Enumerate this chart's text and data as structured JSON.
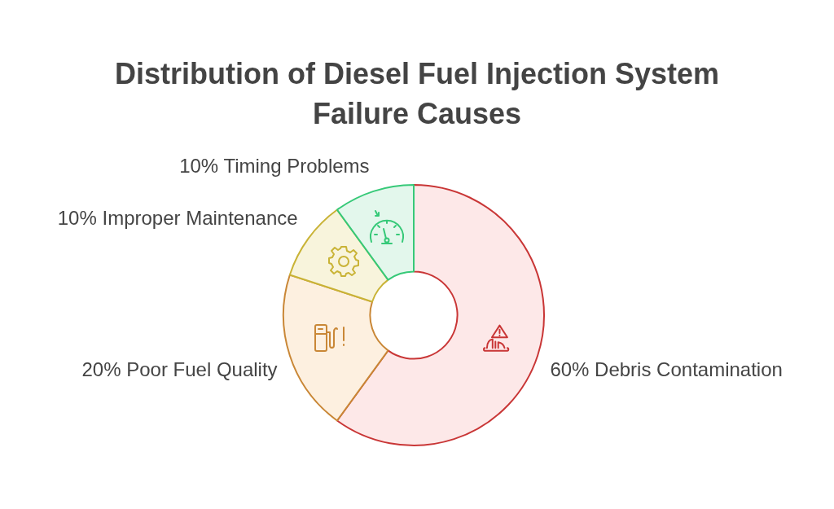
{
  "chart_data": {
    "type": "donut",
    "title": "Distribution of Diesel Fuel Injection System Failure Causes",
    "categories": [
      "Debris Contamination",
      "Poor Fuel Quality",
      "Improper Maintenance",
      "Timing Problems"
    ],
    "values": [
      60,
      20,
      10,
      10
    ],
    "value_labels": [
      "60%",
      "20%",
      "10%",
      "10%"
    ],
    "colors": [
      "#fde8e8",
      "#fdf0e0",
      "#f8f4dc",
      "#e3f7ec"
    ]
  }
}
